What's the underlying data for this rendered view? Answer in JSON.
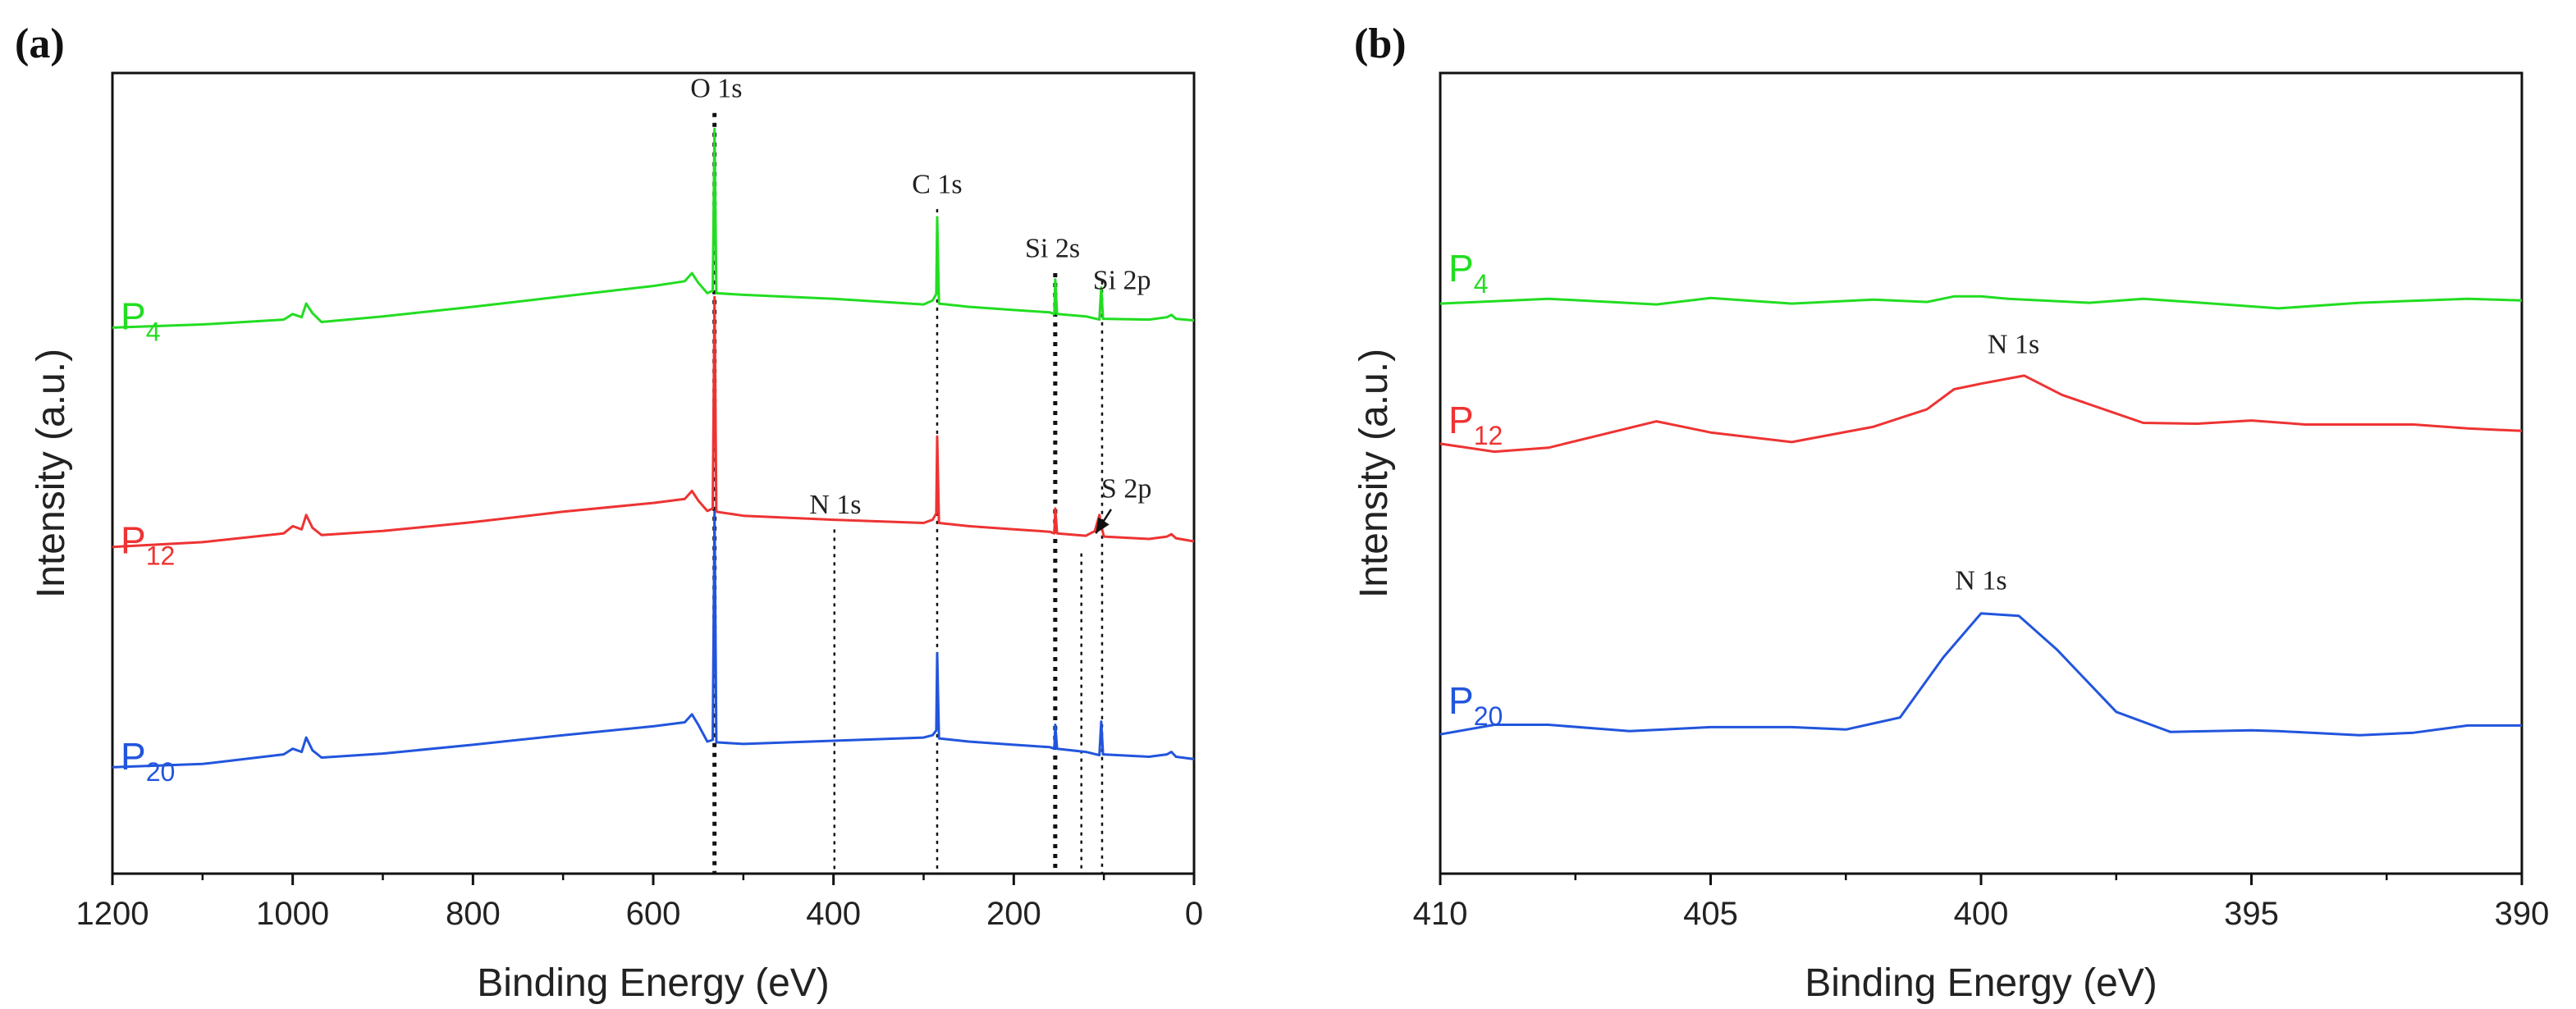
{
  "colors": {
    "P4": "#22dd22",
    "P12": "#ee3333",
    "P20": "#2255dd",
    "axis": "#111111"
  },
  "chart_data": [
    {
      "panel": "(a)",
      "type": "line",
      "xlabel": "Binding Energy (eV)",
      "ylabel": "Intensity (a.u.)",
      "xlim": [
        1200,
        0
      ],
      "xticks": [
        "1200",
        "1000",
        "800",
        "600",
        "400",
        "200",
        "0"
      ],
      "xtick_values": [
        1200,
        1000,
        800,
        600,
        400,
        200,
        0
      ],
      "ylim": [
        0,
        100
      ],
      "series": [
        {
          "name": "P",
          "sub": "4",
          "color_key": "P4",
          "label_y": 68,
          "points": [
            [
              1200,
              68.2
            ],
            [
              1100,
              68.6
            ],
            [
              1010,
              69.2
            ],
            [
              1000,
              69.9
            ],
            [
              990,
              69.5
            ],
            [
              985,
              71.2
            ],
            [
              978,
              70
            ],
            [
              968,
              68.9
            ],
            [
              900,
              69.6
            ],
            [
              800,
              70.8
            ],
            [
              700,
              72.1
            ],
            [
              600,
              73.4
            ],
            [
              565,
              74
            ],
            [
              557,
              75
            ],
            [
              550,
              73.8
            ],
            [
              540,
              72.5
            ],
            [
              534,
              72.8
            ],
            [
              532,
              93
            ],
            [
              530,
              72.5
            ],
            [
              500,
              72.3
            ],
            [
              400,
              71.8
            ],
            [
              300,
              71.1
            ],
            [
              290,
              71.6
            ],
            [
              286,
              72.4
            ],
            [
              285,
              82
            ],
            [
              283,
              71.2
            ],
            [
              250,
              70.8
            ],
            [
              200,
              70.4
            ],
            [
              160,
              70.1
            ],
            [
              155,
              69.9
            ],
            [
              154,
              74.2
            ],
            [
              152,
              69.9
            ],
            [
              120,
              69.6
            ],
            [
              105,
              69.2
            ],
            [
              103,
              73.2
            ],
            [
              101,
              69.3
            ],
            [
              50,
              69.2
            ],
            [
              30,
              69.5
            ],
            [
              25,
              69.8
            ],
            [
              20,
              69.3
            ],
            [
              0,
              69.1
            ]
          ]
        },
        {
          "name": "P",
          "sub": "12",
          "color_key": "P12",
          "label_y": 40,
          "points": [
            [
              1200,
              40.8
            ],
            [
              1100,
              41.4
            ],
            [
              1010,
              42.5
            ],
            [
              1000,
              43.4
            ],
            [
              990,
              43
            ],
            [
              985,
              44.8
            ],
            [
              978,
              43.2
            ],
            [
              968,
              42.3
            ],
            [
              900,
              42.8
            ],
            [
              800,
              43.9
            ],
            [
              700,
              45.2
            ],
            [
              600,
              46.3
            ],
            [
              565,
              46.8
            ],
            [
              557,
              47.8
            ],
            [
              550,
              46.6
            ],
            [
              540,
              45.3
            ],
            [
              534,
              45.6
            ],
            [
              532,
              72
            ],
            [
              530,
              45.2
            ],
            [
              500,
              44.7
            ],
            [
              400,
              44.2
            ],
            [
              300,
              43.8
            ],
            [
              290,
              44.2
            ],
            [
              286,
              45
            ],
            [
              285,
              54.6
            ],
            [
              283,
              43.8
            ],
            [
              250,
              43.4
            ],
            [
              200,
              43
            ],
            [
              160,
              42.7
            ],
            [
              155,
              42.5
            ],
            [
              154,
              45.6
            ],
            [
              152,
              42.5
            ],
            [
              120,
              42.2
            ],
            [
              110,
              42.8
            ],
            [
              105,
              44.8
            ],
            [
              102,
              43
            ],
            [
              100,
              42.1
            ],
            [
              50,
              41.8
            ],
            [
              30,
              42.1
            ],
            [
              25,
              42.4
            ],
            [
              20,
              41.9
            ],
            [
              0,
              41.5
            ]
          ]
        },
        {
          "name": "P",
          "sub": "20",
          "color_key": "P20",
          "label_y": 13,
          "points": [
            [
              1200,
              13.3
            ],
            [
              1100,
              13.7
            ],
            [
              1010,
              14.9
            ],
            [
              1000,
              15.6
            ],
            [
              990,
              15.2
            ],
            [
              985,
              17
            ],
            [
              978,
              15.4
            ],
            [
              968,
              14.5
            ],
            [
              900,
              15
            ],
            [
              800,
              16.1
            ],
            [
              700,
              17.3
            ],
            [
              600,
              18.4
            ],
            [
              565,
              18.9
            ],
            [
              557,
              19.9
            ],
            [
              550,
              18.6
            ],
            [
              540,
              16.5
            ],
            [
              534,
              16.7
            ],
            [
              532,
              45.2
            ],
            [
              530,
              16.4
            ],
            [
              500,
              16.2
            ],
            [
              400,
              16.6
            ],
            [
              300,
              17
            ],
            [
              290,
              17.3
            ],
            [
              286,
              17.9
            ],
            [
              285,
              27.5
            ],
            [
              283,
              16.9
            ],
            [
              250,
              16.5
            ],
            [
              200,
              16.1
            ],
            [
              160,
              15.8
            ],
            [
              155,
              15.6
            ],
            [
              154,
              18.6
            ],
            [
              152,
              15.6
            ],
            [
              120,
              15.2
            ],
            [
              105,
              14.8
            ],
            [
              103,
              19
            ],
            [
              101,
              14.9
            ],
            [
              50,
              14.6
            ],
            [
              30,
              14.9
            ],
            [
              25,
              15.2
            ],
            [
              20,
              14.6
            ],
            [
              0,
              14.3
            ]
          ]
        }
      ],
      "ref_lines": [
        {
          "x": 532,
          "y_top": 95,
          "style": "heavy"
        },
        {
          "x": 285,
          "y_top": 83,
          "style": "light"
        },
        {
          "x": 154,
          "y_top": 75,
          "style": "heavy"
        },
        {
          "x": 102,
          "y_top": 74,
          "style": "light"
        },
        {
          "x": 399,
          "y_top": 43,
          "style": "light"
        },
        {
          "x": 125,
          "y_top": 40,
          "style": "light"
        }
      ],
      "annotations": [
        {
          "text": "O 1s",
          "x": 530,
          "y": 97
        },
        {
          "text": "C 1s",
          "x": 285,
          "y": 85
        },
        {
          "text": "Si 2s",
          "x": 157,
          "y": 77
        },
        {
          "text": "Si 2p",
          "x": 80,
          "y": 73
        },
        {
          "text": "N 1s",
          "x": 398,
          "y": 45
        },
        {
          "text": "S 2p",
          "x": 75,
          "y": 47
        }
      ],
      "arrow": {
        "from_x": 92,
        "from_y": 45.5,
        "to_x": 109,
        "to_y": 42.5
      }
    },
    {
      "panel": "(b)",
      "type": "line",
      "xlabel": "Binding Energy (eV)",
      "ylabel": "Intensity (a.u.)",
      "xlim": [
        410,
        390
      ],
      "xticks": [
        "410",
        "405",
        "400",
        "395",
        "390"
      ],
      "xtick_values": [
        410,
        405,
        400,
        395,
        390
      ],
      "ylim": [
        0,
        100
      ],
      "series": [
        {
          "name": "P",
          "sub": "4",
          "color_key": "P4",
          "label_y": 74,
          "points": [
            [
              410,
              71.2
            ],
            [
              408,
              71.8
            ],
            [
              406,
              71.1
            ],
            [
              405,
              71.9
            ],
            [
              403.5,
              71.2
            ],
            [
              402,
              71.7
            ],
            [
              401,
              71.4
            ],
            [
              400.5,
              72.1
            ],
            [
              400,
              72.1
            ],
            [
              399.5,
              71.8
            ],
            [
              398,
              71.3
            ],
            [
              397,
              71.8
            ],
            [
              395.5,
              71.1
            ],
            [
              394.5,
              70.6
            ],
            [
              393,
              71.3
            ],
            [
              391,
              71.8
            ],
            [
              390,
              71.6
            ]
          ]
        },
        {
          "name": "P",
          "sub": "12",
          "color_key": "P12",
          "label_y": 55,
          "points": [
            [
              410,
              53.7
            ],
            [
              409,
              52.7
            ],
            [
              408,
              53.2
            ],
            [
              406,
              56.5
            ],
            [
              405,
              55.1
            ],
            [
              403.5,
              53.9
            ],
            [
              402,
              55.8
            ],
            [
              401,
              58
            ],
            [
              400.5,
              60.5
            ],
            [
              400,
              61.2
            ],
            [
              399.2,
              62.2
            ],
            [
              398.5,
              59.8
            ],
            [
              397,
              56.3
            ],
            [
              396,
              56.2
            ],
            [
              395,
              56.6
            ],
            [
              394,
              56.1
            ],
            [
              392,
              56.1
            ],
            [
              391,
              55.6
            ],
            [
              390,
              55.3
            ]
          ]
        },
        {
          "name": "P",
          "sub": "20",
          "color_key": "P20",
          "label_y": 20,
          "points": [
            [
              410,
              17.4
            ],
            [
              409,
              18.6
            ],
            [
              408,
              18.6
            ],
            [
              406.5,
              17.8
            ],
            [
              405,
              18.3
            ],
            [
              403.5,
              18.3
            ],
            [
              402.5,
              18
            ],
            [
              401.5,
              19.5
            ],
            [
              400.7,
              27
            ],
            [
              400,
              32.5
            ],
            [
              399.3,
              32.2
            ],
            [
              398.6,
              28
            ],
            [
              397.5,
              20.2
            ],
            [
              396.5,
              17.7
            ],
            [
              395,
              17.9
            ],
            [
              394.5,
              17.8
            ],
            [
              393,
              17.3
            ],
            [
              392,
              17.6
            ],
            [
              391,
              18.5
            ],
            [
              390,
              18.5
            ]
          ]
        }
      ],
      "ref_lines": [],
      "annotations": [
        {
          "text": "N 1s",
          "x": 399.4,
          "y": 65
        },
        {
          "text": "N 1s",
          "x": 400,
          "y": 35.5
        }
      ]
    }
  ]
}
